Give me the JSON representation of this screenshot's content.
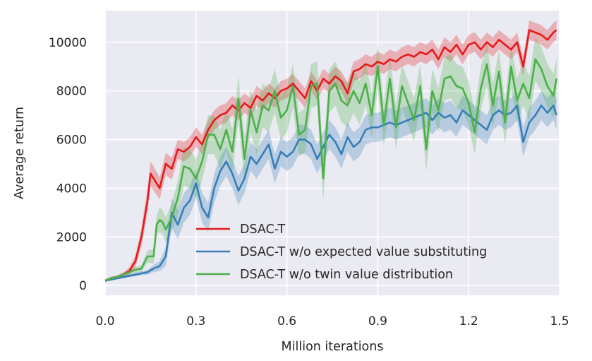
{
  "chart_data": {
    "type": "line",
    "title": "",
    "xlabel": "Million iterations",
    "ylabel": "Average return",
    "xlim": [
      0,
      1.5
    ],
    "ylim": [
      -400,
      11300
    ],
    "xticks": [
      0.0,
      0.3,
      0.6,
      0.9,
      1.2,
      1.5
    ],
    "xtick_labels": [
      "0.0",
      "0.3",
      "0.6",
      "0.9",
      "1.2",
      "1.5"
    ],
    "yticks": [
      0,
      2000,
      4000,
      6000,
      8000,
      10000
    ],
    "ytick_labels": [
      "0",
      "2000",
      "4000",
      "6000",
      "8000",
      "10000"
    ],
    "grid": true,
    "legend_position": "bottom-center",
    "series": [
      {
        "name": "DSAC-T",
        "color": "#e41a1c",
        "x": [
          0.0,
          0.02,
          0.04,
          0.06,
          0.08,
          0.1,
          0.12,
          0.14,
          0.15,
          0.16,
          0.18,
          0.2,
          0.22,
          0.24,
          0.26,
          0.28,
          0.3,
          0.32,
          0.34,
          0.36,
          0.38,
          0.4,
          0.42,
          0.44,
          0.46,
          0.48,
          0.5,
          0.52,
          0.54,
          0.56,
          0.58,
          0.6,
          0.62,
          0.64,
          0.66,
          0.68,
          0.7,
          0.72,
          0.74,
          0.76,
          0.78,
          0.8,
          0.82,
          0.84,
          0.86,
          0.88,
          0.9,
          0.92,
          0.94,
          0.96,
          0.98,
          1.0,
          1.02,
          1.04,
          1.06,
          1.08,
          1.1,
          1.12,
          1.14,
          1.16,
          1.18,
          1.2,
          1.22,
          1.24,
          1.26,
          1.28,
          1.3,
          1.32,
          1.34,
          1.36,
          1.38,
          1.4,
          1.42,
          1.44,
          1.46,
          1.48,
          1.49
        ],
        "values": [
          200,
          300,
          350,
          450,
          600,
          1000,
          2000,
          3500,
          4600,
          4400,
          4000,
          5000,
          4800,
          5600,
          5500,
          5700,
          6100,
          5800,
          6400,
          6800,
          7000,
          7100,
          7400,
          7200,
          7500,
          7300,
          7800,
          7600,
          7900,
          7700,
          8000,
          8100,
          8300,
          8000,
          7700,
          8400,
          8000,
          8500,
          8300,
          8600,
          8400,
          7900,
          8800,
          8900,
          9100,
          9000,
          9200,
          9100,
          9300,
          9200,
          9400,
          9500,
          9400,
          9600,
          9500,
          9700,
          9300,
          9800,
          9600,
          9900,
          9500,
          9900,
          10000,
          9700,
          10000,
          9800,
          10100,
          9900,
          9700,
          10000,
          9000,
          10500,
          10400,
          10300,
          10100,
          10400,
          10500
        ],
        "std": [
          60,
          70,
          80,
          90,
          150,
          250,
          400,
          500,
          500,
          500,
          450,
          450,
          450,
          400,
          400,
          400,
          400,
          400,
          400,
          400,
          400,
          400,
          400,
          400,
          400,
          400,
          400,
          400,
          400,
          400,
          400,
          400,
          400,
          400,
          400,
          400,
          400,
          400,
          400,
          400,
          400,
          450,
          400,
          400,
          400,
          400,
          400,
          400,
          400,
          400,
          400,
          400,
          400,
          400,
          400,
          400,
          400,
          400,
          400,
          400,
          400,
          400,
          400,
          400,
          400,
          400,
          400,
          400,
          400,
          400,
          400,
          400,
          400,
          400,
          400,
          400,
          400
        ]
      },
      {
        "name": "DSAC-T w/o expected value substituting",
        "color": "#377eb8",
        "x": [
          0.0,
          0.02,
          0.04,
          0.06,
          0.08,
          0.1,
          0.12,
          0.14,
          0.16,
          0.18,
          0.2,
          0.22,
          0.24,
          0.26,
          0.28,
          0.3,
          0.32,
          0.34,
          0.36,
          0.38,
          0.4,
          0.42,
          0.44,
          0.46,
          0.48,
          0.5,
          0.52,
          0.54,
          0.56,
          0.58,
          0.6,
          0.62,
          0.64,
          0.66,
          0.68,
          0.7,
          0.72,
          0.74,
          0.76,
          0.78,
          0.8,
          0.82,
          0.84,
          0.86,
          0.88,
          0.9,
          0.92,
          0.94,
          0.96,
          0.98,
          1.0,
          1.02,
          1.04,
          1.06,
          1.08,
          1.1,
          1.12,
          1.14,
          1.16,
          1.18,
          1.2,
          1.22,
          1.24,
          1.26,
          1.28,
          1.3,
          1.32,
          1.34,
          1.36,
          1.38,
          1.4,
          1.42,
          1.44,
          1.46,
          1.48,
          1.49
        ],
        "values": [
          200,
          250,
          300,
          350,
          400,
          450,
          500,
          550,
          700,
          800,
          1200,
          3000,
          2500,
          3200,
          3500,
          4200,
          3200,
          2800,
          4000,
          4700,
          5100,
          4600,
          3900,
          4400,
          5300,
          5000,
          5400,
          5800,
          4800,
          5500,
          5300,
          5500,
          6000,
          6000,
          5800,
          5200,
          5700,
          6200,
          5900,
          5400,
          6100,
          5700,
          5900,
          6400,
          6500,
          6500,
          6600,
          6700,
          6600,
          6700,
          6800,
          6900,
          7000,
          7100,
          6800,
          7100,
          6900,
          7000,
          6700,
          7200,
          7000,
          6800,
          6600,
          6400,
          7000,
          7200,
          7000,
          7100,
          7400,
          5900,
          6700,
          7000,
          7400,
          7100,
          7400,
          7000
        ],
        "std": [
          40,
          40,
          50,
          50,
          60,
          70,
          80,
          100,
          150,
          200,
          400,
          600,
          600,
          600,
          600,
          600,
          600,
          600,
          600,
          600,
          600,
          600,
          600,
          600,
          600,
          600,
          600,
          600,
          600,
          600,
          600,
          600,
          600,
          600,
          600,
          600,
          600,
          600,
          600,
          600,
          600,
          600,
          600,
          600,
          600,
          600,
          600,
          600,
          600,
          600,
          600,
          600,
          600,
          600,
          600,
          600,
          600,
          600,
          600,
          600,
          600,
          600,
          600,
          600,
          600,
          600,
          600,
          600,
          600,
          600,
          600,
          600,
          600,
          600,
          600,
          600
        ]
      },
      {
        "name": "DSAC-T w/o twin value distribution",
        "color": "#4daf4a",
        "x": [
          0.0,
          0.02,
          0.04,
          0.06,
          0.08,
          0.1,
          0.12,
          0.14,
          0.16,
          0.17,
          0.18,
          0.19,
          0.2,
          0.22,
          0.24,
          0.26,
          0.28,
          0.3,
          0.32,
          0.34,
          0.36,
          0.38,
          0.4,
          0.42,
          0.44,
          0.46,
          0.48,
          0.5,
          0.52,
          0.54,
          0.56,
          0.58,
          0.6,
          0.62,
          0.64,
          0.66,
          0.68,
          0.7,
          0.72,
          0.74,
          0.76,
          0.78,
          0.8,
          0.82,
          0.84,
          0.86,
          0.88,
          0.9,
          0.92,
          0.94,
          0.96,
          0.98,
          1.0,
          1.02,
          1.04,
          1.06,
          1.08,
          1.1,
          1.12,
          1.14,
          1.16,
          1.18,
          1.2,
          1.22,
          1.24,
          1.26,
          1.28,
          1.3,
          1.32,
          1.34,
          1.36,
          1.38,
          1.4,
          1.42,
          1.44,
          1.46,
          1.48,
          1.49
        ],
        "values": [
          200,
          300,
          350,
          450,
          550,
          650,
          700,
          1200,
          1200,
          2500,
          2700,
          2600,
          2300,
          2800,
          3600,
          4900,
          4800,
          4400,
          5100,
          6200,
          6200,
          5600,
          6400,
          5500,
          7700,
          5200,
          7200,
          6300,
          7400,
          7200,
          8000,
          6900,
          7200,
          8200,
          6200,
          6400,
          8200,
          8300,
          4400,
          8000,
          8300,
          7600,
          7400,
          8000,
          7500,
          8300,
          7000,
          9000,
          6600,
          8500,
          6500,
          8200,
          7500,
          6800,
          8200,
          5600,
          8000,
          7200,
          8500,
          8600,
          8200,
          8100,
          7500,
          6300,
          8100,
          9100,
          7400,
          8800,
          6700,
          9000,
          7600,
          8300,
          7700,
          9300,
          8900,
          8200,
          7800,
          8500
        ],
        "std": [
          50,
          60,
          70,
          80,
          100,
          120,
          150,
          250,
          300,
          400,
          500,
          500,
          500,
          600,
          700,
          800,
          800,
          800,
          800,
          800,
          800,
          800,
          900,
          900,
          900,
          900,
          900,
          900,
          900,
          900,
          900,
          900,
          900,
          900,
          900,
          900,
          900,
          900,
          900,
          900,
          900,
          900,
          900,
          900,
          900,
          900,
          900,
          900,
          900,
          900,
          900,
          900,
          900,
          900,
          900,
          900,
          900,
          900,
          900,
          900,
          900,
          900,
          900,
          900,
          900,
          900,
          900,
          900,
          900,
          900,
          900,
          900,
          900,
          900,
          900,
          900,
          900,
          900
        ]
      }
    ]
  }
}
